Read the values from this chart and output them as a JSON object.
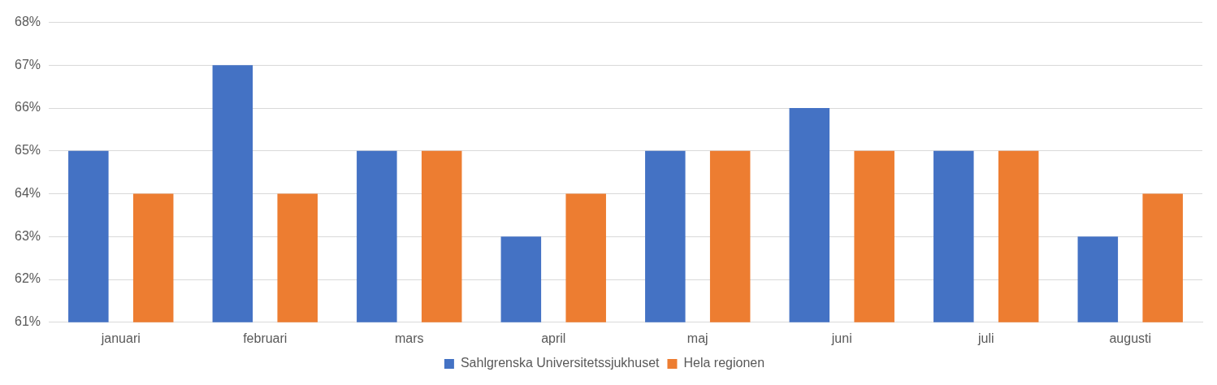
{
  "chart_data": {
    "type": "bar",
    "categories": [
      "januari",
      "februari",
      "mars",
      "april",
      "maj",
      "juni",
      "juli",
      "augusti"
    ],
    "series": [
      {
        "name": "Sahlgrenska Universitetssjukhuset",
        "color": "#4472c4",
        "values": [
          65,
          67,
          65,
          63,
          65,
          66,
          65,
          63
        ]
      },
      {
        "name": "Hela regionen",
        "color": "#ed7d31",
        "values": [
          64,
          64,
          65,
          64,
          65,
          65,
          65,
          64
        ]
      }
    ],
    "ylim": [
      61,
      68
    ],
    "yticks": [
      {
        "value": 61,
        "label": "61%"
      },
      {
        "value": 62,
        "label": "62%"
      },
      {
        "value": 63,
        "label": "63%"
      },
      {
        "value": 64,
        "label": "64%"
      },
      {
        "value": 65,
        "label": "65%"
      },
      {
        "value": 66,
        "label": "66%"
      },
      {
        "value": 67,
        "label": "67%"
      },
      {
        "value": 68,
        "label": "68%"
      }
    ],
    "grid": "y",
    "legend": "bottom"
  }
}
